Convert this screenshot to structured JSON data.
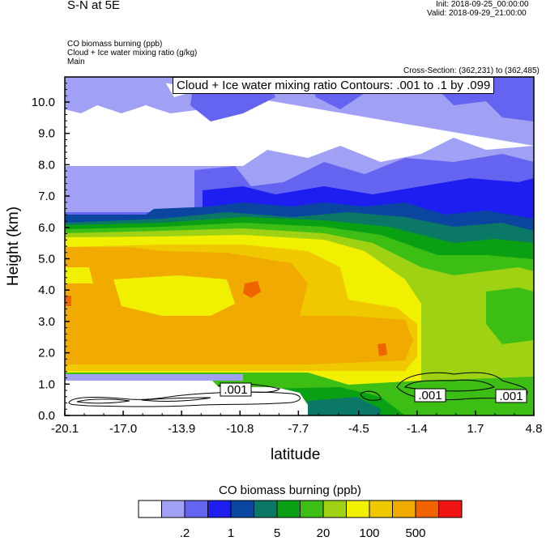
{
  "header": {
    "left_title": "S-N at 5E",
    "init": "Init: 2018-09-25_00:00:00",
    "valid": "Valid: 2018-09-29_21:00:00",
    "field1": "CO biomass burning   (ppb)",
    "field2": "Cloud + Ice water mixing ratio   (g/kg)",
    "field3": "Main",
    "cross_section": "Cross-Section: (362,231) to (362,485)",
    "contour_info": "Cloud + Ice water mixing ratio Contours: .001 to .1 by .099"
  },
  "chart_data": {
    "type": "heatmap",
    "xlabel": "latitude",
    "ylabel": "Height (km)",
    "x_ticks": [
      "-20.1",
      "-17.0",
      "-13.9",
      "-10.8",
      "-7.7",
      "-4.5",
      "-1.4",
      "1.7",
      "4.8"
    ],
    "x_values": [
      -20.1,
      -17.0,
      -13.9,
      -10.8,
      -7.7,
      -4.5,
      -1.4,
      1.7,
      4.8
    ],
    "y_ticks": [
      "0.0",
      "1.0",
      "2.0",
      "3.0",
      "4.0",
      "5.0",
      "6.0",
      "7.0",
      "8.0",
      "9.0",
      "10.0"
    ],
    "y_values": [
      0,
      1,
      2,
      3,
      4,
      5,
      6,
      7,
      8,
      9,
      10
    ],
    "xlim": [
      -20.1,
      4.8
    ],
    "ylim": [
      0,
      10.8
    ],
    "colorbar": {
      "title": "CO biomass burning  (ppb)",
      "colors": [
        "#ffffff",
        "#a0a0f4",
        "#6464f0",
        "#1e1ef0",
        "#0a46a0",
        "#0a7864",
        "#0aa014",
        "#3cbe14",
        "#a0d214",
        "#f0f000",
        "#f0c800",
        "#f0aa00",
        "#f06400",
        "#f01414"
      ],
      "labels": [
        ".2",
        "1",
        "5",
        "20",
        "100",
        "500"
      ]
    },
    "contour_labels": [
      ".001",
      ".001",
      ".001"
    ],
    "contour_levels": [
      0.001,
      0.1
    ]
  }
}
